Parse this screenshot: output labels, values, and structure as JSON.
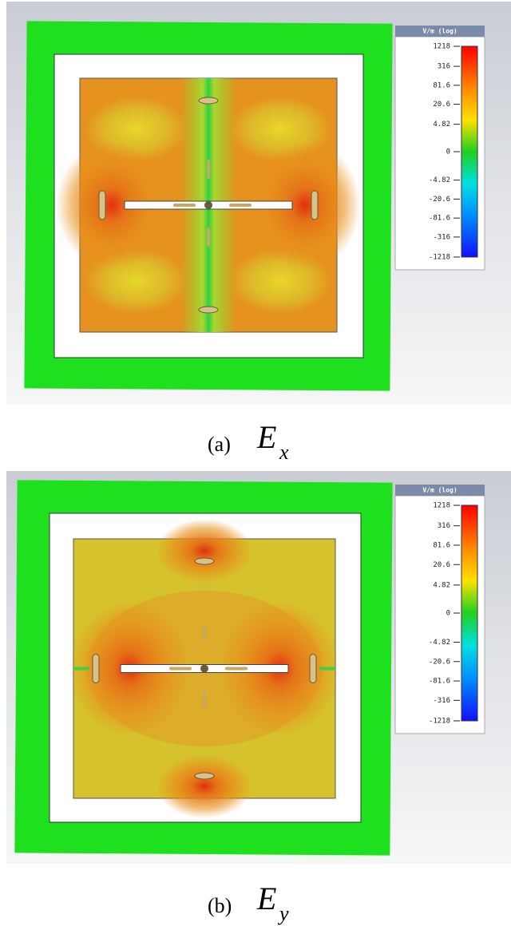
{
  "panels": [
    {
      "colorbar": {
        "unit": "V/m (log)",
        "labels": [
          "1218",
          "316",
          "81.6",
          "20.6",
          "4.82",
          "0",
          "-4.82",
          "-20.6",
          "-81.6",
          "-316",
          "-1218"
        ]
      },
      "caption": {
        "label": "(a)",
        "symbol": "E",
        "subscript": "x"
      }
    },
    {
      "colorbar": {
        "unit": "V/m (log)",
        "labels": [
          "1218",
          "316",
          "81.6",
          "20.6",
          "4.82",
          "0",
          "-4.82",
          "-20.6",
          "-81.6",
          "-316",
          "-1218"
        ]
      },
      "caption": {
        "label": "(b)",
        "symbol": "E",
        "subscript": "y"
      }
    }
  ]
}
